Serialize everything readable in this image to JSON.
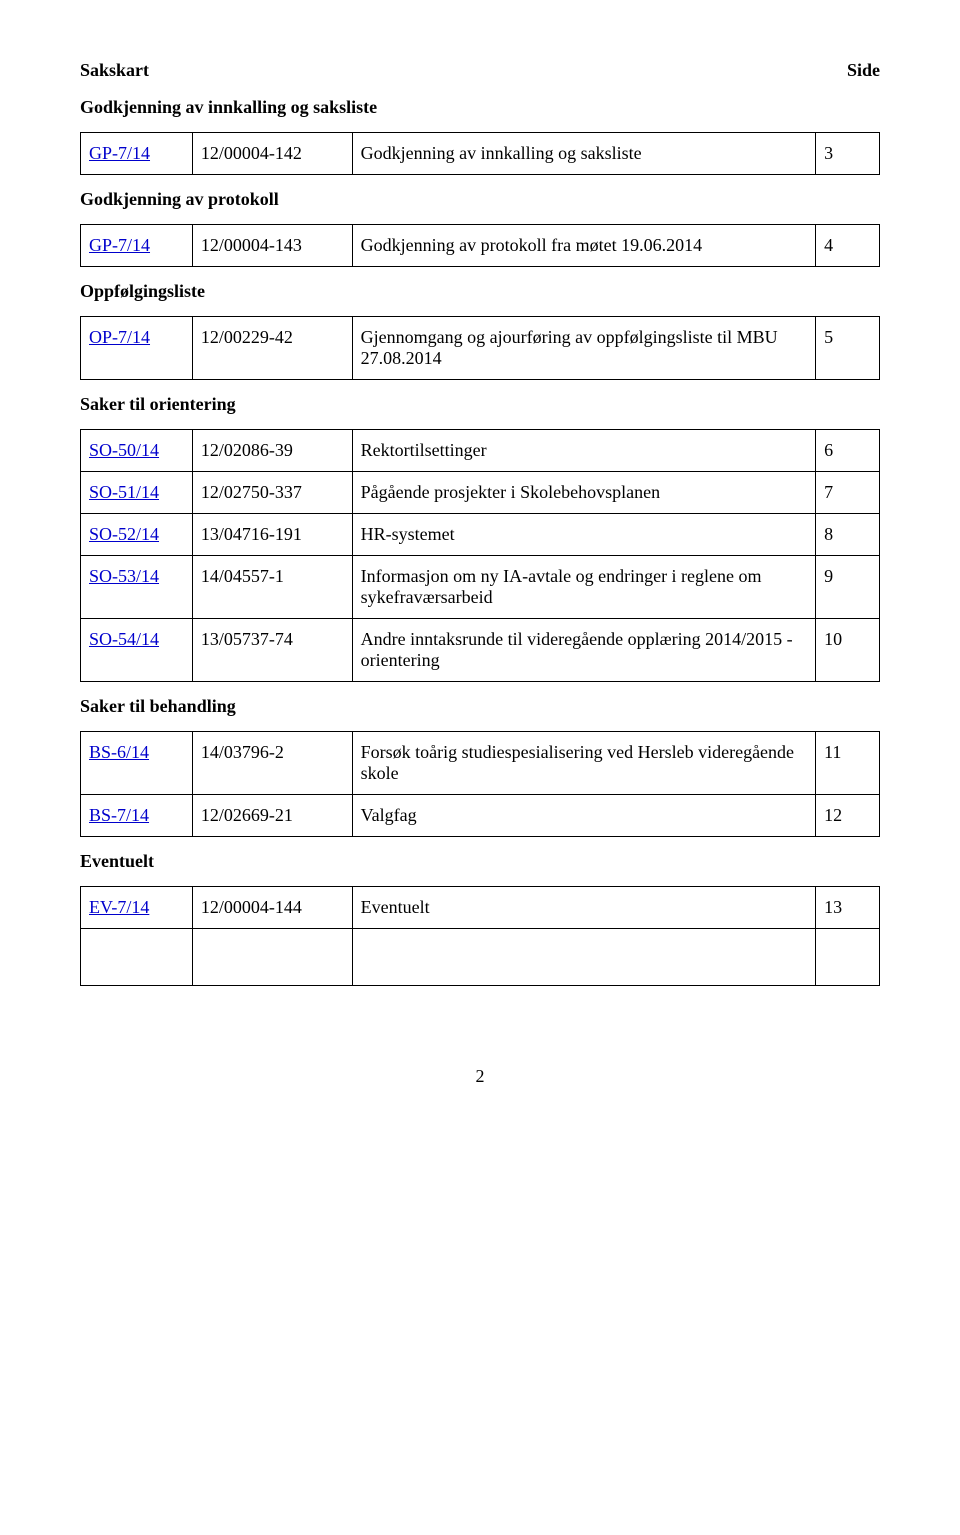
{
  "header": {
    "title_left": "Sakskart",
    "title_right": "Side"
  },
  "sections": {
    "s1": "Godkjenning av innkalling og saksliste",
    "s2": "Godkjenning av protokoll",
    "s3": "Oppfølgingsliste",
    "s4": "Saker til orientering",
    "s5": "Saker til behandling",
    "s6": "Eventuelt"
  },
  "rows": {
    "r1": {
      "id": "GP-7/14",
      "ref": "12/00004-142",
      "desc": "Godkjenning av innkalling og saksliste",
      "page": "3"
    },
    "r2": {
      "id": "GP-7/14",
      "ref": "12/00004-143",
      "desc": "Godkjenning av protokoll fra møtet 19.06.2014",
      "page": "4"
    },
    "r3": {
      "id": "OP-7/14",
      "ref": "12/00229-42",
      "desc": "Gjennomgang og ajourføring av oppfølgingsliste til MBU 27.08.2014",
      "page": "5"
    },
    "r4": {
      "id": "SO-50/14",
      "ref": "12/02086-39",
      "desc": "Rektortilsettinger",
      "page": "6"
    },
    "r5": {
      "id": "SO-51/14",
      "ref": "12/02750-337",
      "desc": "Pågående prosjekter i Skolebehovsplanen",
      "page": "7"
    },
    "r6": {
      "id": "SO-52/14",
      "ref": "13/04716-191",
      "desc": "HR-systemet",
      "page": "8"
    },
    "r7": {
      "id": "SO-53/14",
      "ref": "14/04557-1",
      "desc": "Informasjon om ny IA-avtale og endringer i reglene om sykefraværsarbeid",
      "page": "9"
    },
    "r8": {
      "id": "SO-54/14",
      "ref": "13/05737-74",
      "desc": "Andre inntaksrunde til videregående opplæring 2014/2015 - orientering",
      "page": "10"
    },
    "r9": {
      "id": "BS-6/14",
      "ref": "14/03796-2",
      "desc": "Forsøk toårig studiespesialisering ved Hersleb videregående skole",
      "page": "11"
    },
    "r10": {
      "id": "BS-7/14",
      "ref": "12/02669-21",
      "desc": "Valgfag",
      "page": "12"
    },
    "r11": {
      "id": "EV-7/14",
      "ref": "12/00004-144",
      "desc": "Eventuelt",
      "page": "13"
    }
  },
  "page_number": "2"
}
